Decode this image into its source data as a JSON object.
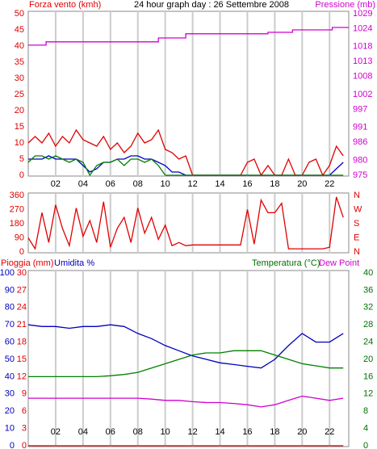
{
  "chart_data": [
    {
      "type": "line",
      "title": "24 hour graph day : 26 Settembre 2008",
      "ylabel": "Forza vento (kmh)",
      "y2label": "Pressione (mb)",
      "ycolor": "#e00000",
      "y2color": "#d000d0",
      "x": [
        0,
        0.5,
        1,
        1.5,
        2,
        2.5,
        3,
        3.5,
        4,
        4.5,
        5,
        5.5,
        6,
        6.5,
        7,
        7.5,
        8,
        8.5,
        9,
        9.5,
        10,
        10.5,
        11,
        11.5,
        12,
        12.5,
        13,
        13.5,
        14,
        14.5,
        15,
        15.5,
        16,
        16.5,
        17,
        17.5,
        18,
        18.5,
        19,
        19.5,
        20,
        20.5,
        21,
        21.5,
        22,
        22.5,
        23
      ],
      "xlim": [
        0,
        23.4
      ],
      "xticks": [
        {
          "value": 2,
          "label": "02"
        },
        {
          "value": 4,
          "label": "04"
        },
        {
          "value": 6,
          "label": "06"
        },
        {
          "value": 8,
          "label": "08"
        },
        {
          "value": 10,
          "label": "10"
        },
        {
          "value": 12,
          "label": "12"
        },
        {
          "value": 14,
          "label": "14"
        },
        {
          "value": 16,
          "label": "16"
        },
        {
          "value": 18,
          "label": "18"
        },
        {
          "value": 20,
          "label": "20"
        },
        {
          "value": 22,
          "label": "22"
        }
      ],
      "ylim": [
        0,
        50
      ],
      "yticks": [
        0,
        5,
        10,
        15,
        20,
        25,
        30,
        35,
        40,
        45,
        50
      ],
      "y2lim": [
        975,
        1029
      ],
      "y2ticks": [
        975,
        980,
        986,
        991,
        997,
        1002,
        1008,
        1013,
        1018,
        1024,
        1029
      ],
      "grid": true,
      "series": [
        {
          "color": "#e00000",
          "values": [
            10,
            12,
            10,
            13,
            9,
            12,
            10,
            14,
            11,
            10,
            9,
            12,
            8,
            10,
            7,
            9,
            13,
            10,
            11,
            14,
            8,
            7,
            5,
            6,
            0,
            0,
            0,
            0,
            0,
            0,
            0,
            0,
            4,
            5,
            0,
            3,
            0,
            0,
            5,
            0,
            0,
            4,
            5,
            0,
            3,
            9,
            6
          ]
        },
        {
          "color": "#0000c0",
          "values": [
            5,
            5,
            5,
            6,
            5,
            5,
            5,
            5,
            3,
            1,
            2,
            4,
            4,
            5,
            5,
            6,
            6,
            5,
            5,
            4,
            3,
            1,
            1,
            0,
            0,
            0,
            0,
            0,
            0,
            0,
            0,
            0,
            0,
            0,
            0,
            0,
            0,
            0,
            0,
            0,
            0,
            0,
            0,
            0,
            0,
            2,
            4
          ]
        },
        {
          "color": "#008000",
          "values": [
            4,
            6,
            6,
            5,
            6,
            5,
            4,
            5,
            4,
            0,
            3,
            4,
            4,
            5,
            3,
            5,
            5,
            4,
            5,
            3,
            0,
            0,
            0,
            0,
            0,
            0,
            0,
            0,
            0,
            0,
            0,
            0,
            0,
            0,
            0,
            0,
            0,
            0,
            0,
            0,
            0,
            0,
            0,
            0,
            0,
            0,
            0
          ]
        },
        {
          "color": "#d000d0",
          "axis": "y2",
          "x": [
            0,
            1.3,
            1.3,
            9.5,
            9.5,
            11.5,
            11.5,
            17.5,
            17.5,
            19.3,
            19.3,
            22.2,
            22.2,
            23.4
          ],
          "values": [
            1018.5,
            1018.5,
            1019.6,
            1019.6,
            1020.9,
            1020.9,
            1022.3,
            1022.3,
            1022.8,
            1022.8,
            1023.6,
            1023.6,
            1024.4,
            1024.4
          ]
        }
      ]
    },
    {
      "type": "line",
      "ycolor": "#e00000",
      "x": [
        0,
        0.5,
        1,
        1.5,
        2,
        2.5,
        3,
        3.5,
        4,
        4.5,
        5,
        5.5,
        6,
        6.5,
        7,
        7.5,
        8,
        8.5,
        9,
        9.5,
        10,
        10.5,
        11,
        11.5,
        12,
        12.5,
        13,
        13.5,
        14,
        14.5,
        15,
        15.5,
        16,
        16.5,
        17,
        17.5,
        18,
        18.5,
        19,
        19.5,
        20,
        20.5,
        21,
        21.5,
        22,
        22.5,
        23
      ],
      "xlim": [
        0,
        23.4
      ],
      "xticks": [
        2,
        4,
        6,
        8,
        10,
        12,
        14,
        16,
        18,
        20,
        22
      ],
      "ylim": [
        0,
        360
      ],
      "yticks": [
        0,
        90,
        180,
        270,
        360
      ],
      "y2lim": [
        0,
        360
      ],
      "y2ticks": [
        {
          "value": 360,
          "label": "N"
        },
        {
          "value": 270,
          "label": "W"
        },
        {
          "value": 180,
          "label": "S"
        },
        {
          "value": 90,
          "label": "E"
        },
        {
          "value": 0,
          "label": "N"
        }
      ],
      "grid": true,
      "series": [
        {
          "color": "#e00000",
          "values": [
            90,
            20,
            250,
            60,
            300,
            150,
            40,
            280,
            100,
            200,
            60,
            320,
            30,
            150,
            220,
            60,
            280,
            120,
            220,
            80,
            170,
            40,
            60,
            40,
            45,
            45,
            45,
            45,
            45,
            45,
            45,
            45,
            270,
            50,
            330,
            250,
            250,
            310,
            20,
            20,
            20,
            20,
            20,
            20,
            30,
            350,
            220
          ]
        }
      ]
    },
    {
      "type": "line",
      "ylabel": "Umidita %",
      "y2label": "Temperatura (°C)",
      "y3label": "Pioggia (mm)",
      "ycolor": "#0000c0",
      "y2color": "#007000",
      "y3color": "#e00000",
      "x": [
        0,
        1,
        2,
        3,
        4,
        5,
        6,
        7,
        8,
        9,
        10,
        11,
        12,
        13,
        14,
        15,
        16,
        17,
        18,
        19,
        20,
        21,
        22,
        23
      ],
      "xlim": [
        0,
        23.4
      ],
      "xticks": [
        {
          "value": 2,
          "label": "02"
        },
        {
          "value": 4,
          "label": "04"
        },
        {
          "value": 6,
          "label": "06"
        },
        {
          "value": 8,
          "label": "08"
        },
        {
          "value": 10,
          "label": "10"
        },
        {
          "value": 12,
          "label": "12"
        },
        {
          "value": 14,
          "label": "14"
        },
        {
          "value": 16,
          "label": "16"
        },
        {
          "value": 18,
          "label": "18"
        },
        {
          "value": 20,
          "label": "20"
        },
        {
          "value": 22,
          "label": "22"
        }
      ],
      "ylim": [
        0,
        100
      ],
      "yticks": [
        0,
        10,
        20,
        30,
        40,
        50,
        60,
        70,
        80,
        90,
        100
      ],
      "y2lim": [
        0,
        40
      ],
      "y2ticks": [
        0,
        4,
        8,
        12,
        16,
        20,
        24,
        28,
        32,
        36,
        40
      ],
      "y3lim": [
        0,
        30
      ],
      "y3ticks": [
        0,
        3,
        6,
        9,
        12,
        15,
        18,
        21,
        24,
        27,
        30
      ],
      "grid": true,
      "series": [
        {
          "color": "#0000c0",
          "values": [
            70,
            69,
            69,
            68,
            69,
            69,
            70,
            69,
            65,
            62,
            58,
            55,
            52,
            50,
            48,
            47,
            46,
            45,
            50,
            58,
            65,
            60,
            60,
            65
          ]
        },
        {
          "color": "#008000",
          "axis": "y2",
          "values": [
            16,
            16,
            16,
            16,
            16,
            16,
            16.2,
            16.5,
            17,
            18,
            19,
            20,
            21,
            21.5,
            21.5,
            22,
            22,
            22,
            21,
            20,
            19,
            18.5,
            18,
            18
          ]
        },
        {
          "name": "Dew Point",
          "color": "#d000d0",
          "axis": "y2",
          "values": [
            11,
            11,
            11,
            11,
            11,
            11,
            11,
            11,
            11,
            10.8,
            10.5,
            10.5,
            10.2,
            10,
            10,
            9.8,
            9.5,
            9,
            9.5,
            10.5,
            11.5,
            11,
            10.5,
            11
          ]
        },
        {
          "color": "#e00000",
          "axis": "y3",
          "values": [
            0,
            0,
            0,
            0,
            0,
            0,
            0,
            0,
            0,
            0,
            0,
            0,
            0,
            0,
            0,
            0,
            0,
            0,
            0,
            0,
            0,
            0,
            0,
            0
          ]
        }
      ]
    }
  ]
}
